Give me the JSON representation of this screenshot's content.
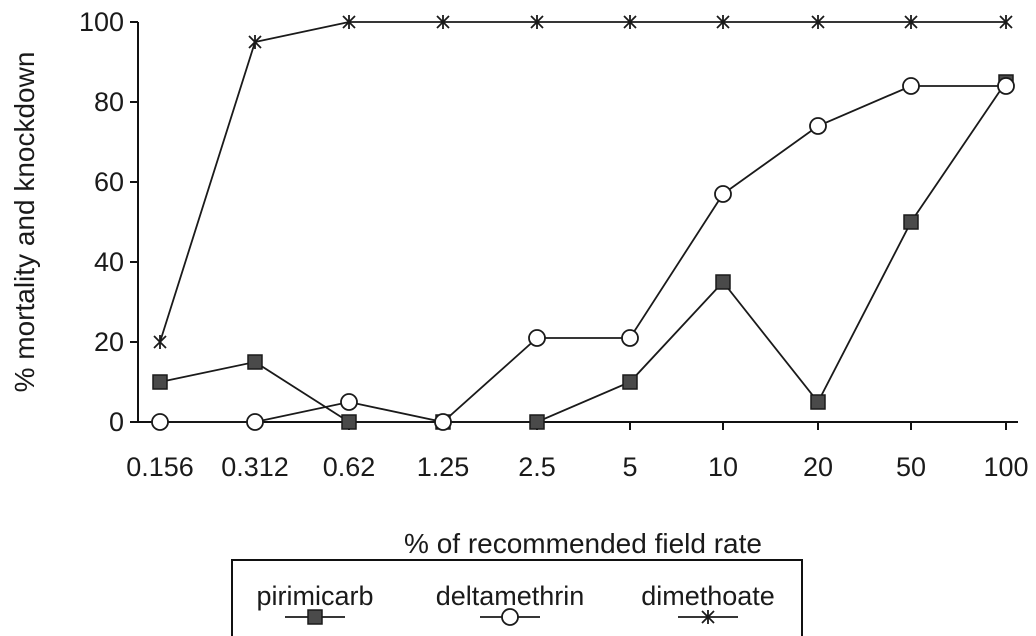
{
  "chart_data": {
    "type": "line",
    "title": "",
    "xlabel": "% of recommended field rate",
    "ylabel": "% mortality and knockdown",
    "categories": [
      "0.156",
      "0.312",
      "0.62",
      "1.25",
      "2.5",
      "5",
      "10",
      "20",
      "50",
      "100"
    ],
    "ylim": [
      0,
      100
    ],
    "yticks": [
      "0",
      "20",
      "40",
      "60",
      "80",
      "100"
    ],
    "grid": false,
    "legend_position": "bottom",
    "series": [
      {
        "name": "pirimicarb",
        "marker": "filled-square",
        "color": "#3a3a3a",
        "values": [
          10,
          15,
          0,
          0,
          0,
          10,
          35,
          5,
          50,
          85
        ]
      },
      {
        "name": "deltamethrin",
        "marker": "open-circle",
        "color": "#222222",
        "values": [
          0,
          0,
          5,
          0,
          21,
          21,
          57,
          74,
          84,
          84
        ]
      },
      {
        "name": "dimethoate",
        "marker": "star",
        "color": "#222222",
        "values": [
          20,
          95,
          100,
          100,
          100,
          100,
          100,
          100,
          100,
          100
        ]
      }
    ]
  }
}
